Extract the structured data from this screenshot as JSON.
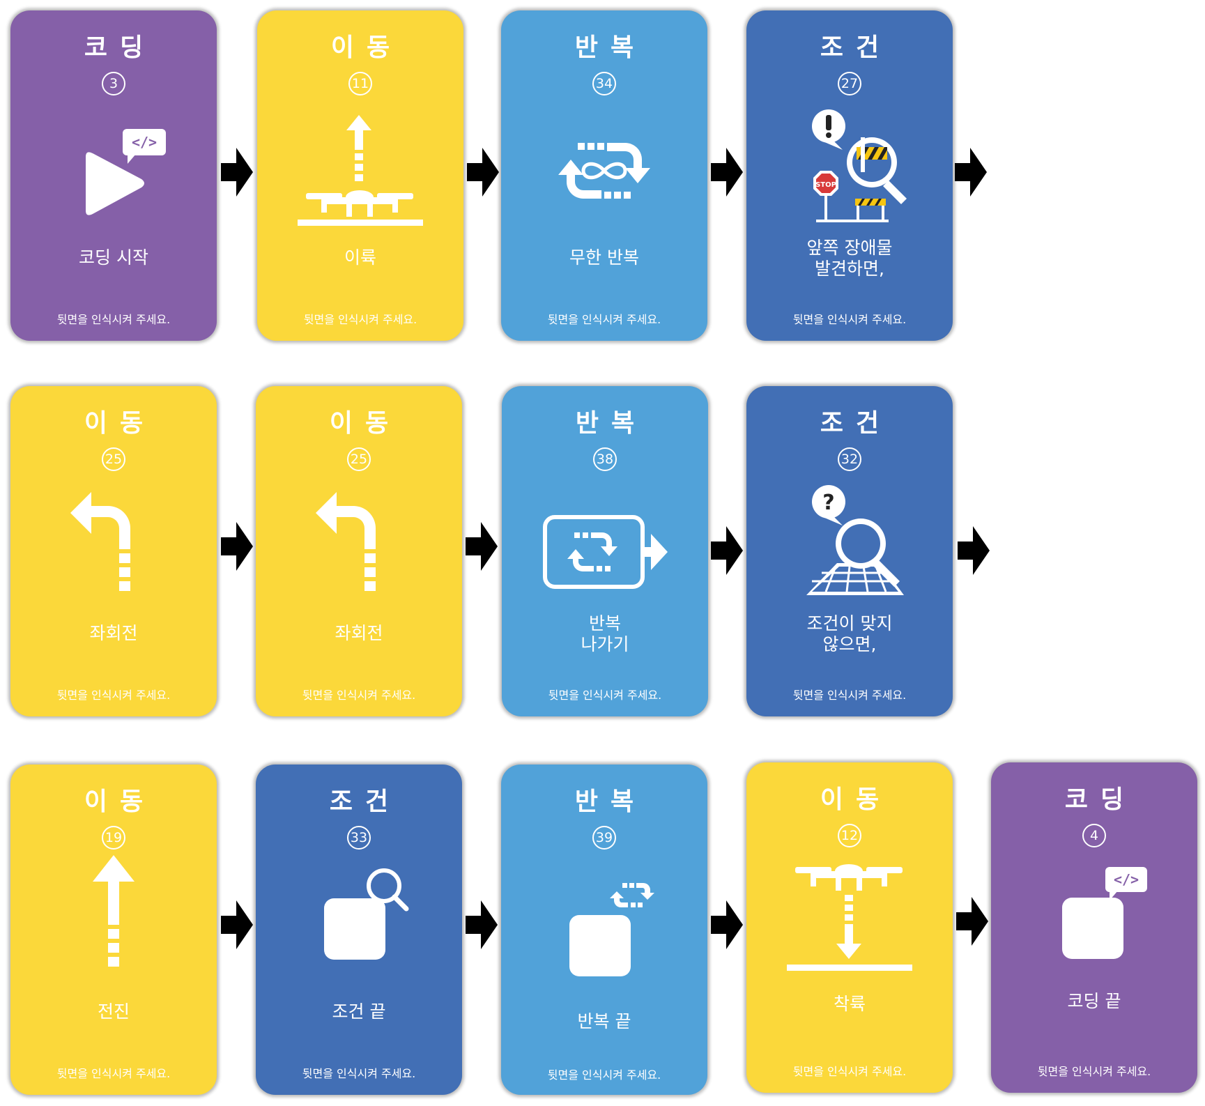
{
  "note": "뒷면을 인식시켜 주세요.",
  "colors": {
    "coding": "#8560A8",
    "move": "#FBD83A",
    "repeat": "#51A2D9",
    "condition": "#426FB5",
    "arrow": "#000000"
  },
  "cards": [
    {
      "category": "코딩",
      "number": "3",
      "label": "코딩 시작",
      "icon": "play-code-icon",
      "color": "coding"
    },
    {
      "category": "이동",
      "number": "11",
      "label": "이륙",
      "icon": "drone-takeoff-icon",
      "color": "move"
    },
    {
      "category": "반복",
      "number": "34",
      "label": "무한 반복",
      "icon": "infinite-loop-icon",
      "color": "repeat"
    },
    {
      "category": "조건",
      "number": "27",
      "label": "앞쪽 장애물\n발견하면,",
      "icon": "obstacle-search-icon",
      "color": "condition"
    },
    {
      "category": "이동",
      "number": "25",
      "label": "좌회전",
      "icon": "turn-left-icon",
      "color": "move"
    },
    {
      "category": "이동",
      "number": "25",
      "label": "좌회전",
      "icon": "turn-left-icon",
      "color": "move"
    },
    {
      "category": "반복",
      "number": "38",
      "label": "반복\n나가기",
      "icon": "loop-exit-icon",
      "color": "repeat"
    },
    {
      "category": "조건",
      "number": "32",
      "label": "조건이 맞지\n않으면,",
      "icon": "question-search-icon",
      "color": "condition"
    },
    {
      "category": "이동",
      "number": "19",
      "label": "전진",
      "icon": "forward-arrow-icon",
      "color": "move"
    },
    {
      "category": "조건",
      "number": "33",
      "label": "조건 끝",
      "icon": "condition-end-icon",
      "color": "condition"
    },
    {
      "category": "반복",
      "number": "39",
      "label": "반복 끝",
      "icon": "loop-end-icon",
      "color": "repeat"
    },
    {
      "category": "이동",
      "number": "12",
      "label": "착륙",
      "icon": "drone-landing-icon",
      "color": "move"
    },
    {
      "category": "코딩",
      "number": "4",
      "label": "코딩 끝",
      "icon": "coding-end-icon",
      "color": "coding"
    }
  ],
  "arrows": 12
}
